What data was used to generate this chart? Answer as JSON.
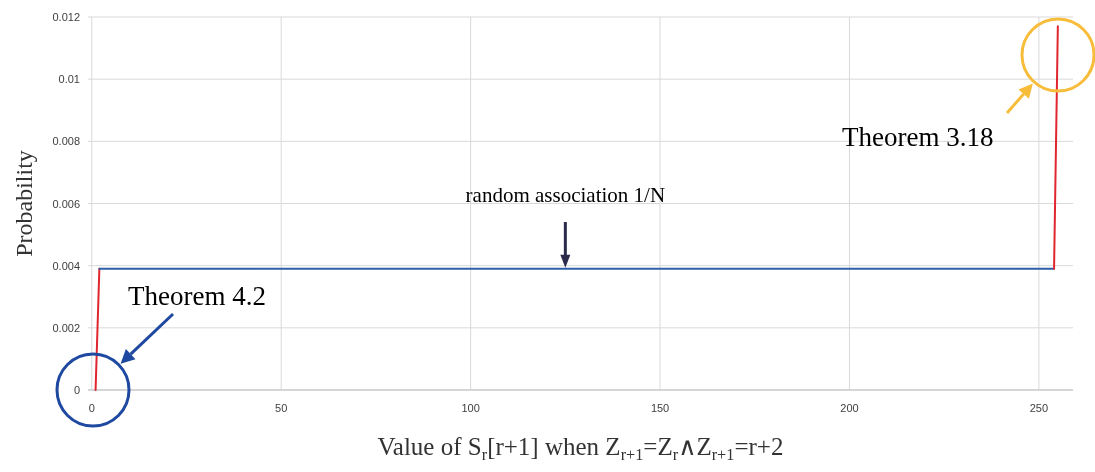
{
  "chart_data": {
    "type": "line",
    "xlabel": "Value of S$_{r}$[r+1] when Z$_{r+1}$=Z$_{r}$∧Z$_{r+1}$=r+2",
    "ylabel": "Probability",
    "series": [
      {
        "color": "#e0262e",
        "x": [
          1,
          2
        ],
        "values": [
          0,
          0.0039
        ]
      },
      {
        "color": "#2e5ea8",
        "x": [
          2,
          254
        ],
        "values": [
          0.0039,
          0.0039
        ]
      },
      {
        "color": "#e0262e",
        "x": [
          254,
          255
        ],
        "values": [
          0.0039,
          0.0117
        ]
      }
    ],
    "xlim": [
      -1,
      259
    ],
    "xticks": [
      0,
      50,
      100,
      150,
      200,
      250
    ],
    "ylim": [
      0,
      0.012
    ],
    "yticks": [
      0,
      0.002,
      0.004,
      0.006,
      0.008,
      0.01,
      0.012
    ],
    "grid": true,
    "annotations": [
      "Theorem 4.2",
      "Theorem 3.18",
      {
        "text": "random association 1/N",
        "x": 125,
        "y": 0.0039
      }
    ]
  }
}
